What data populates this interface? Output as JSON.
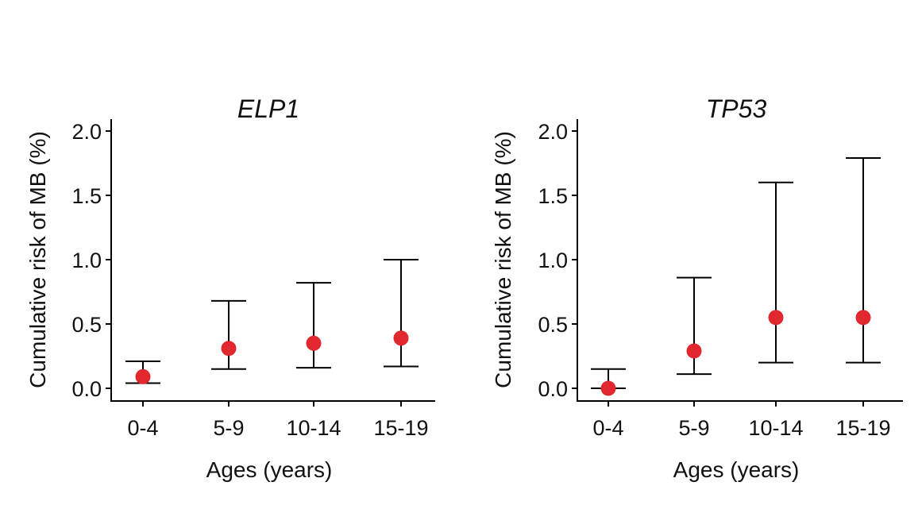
{
  "chart_data": [
    {
      "type": "scatter",
      "title": "ELP1",
      "xlabel": "Ages (years)",
      "ylabel": "Cumulative risk of MB (%)",
      "categories": [
        "0-4",
        "5-9",
        "10-14",
        "15-19"
      ],
      "values": [
        0.09,
        0.31,
        0.35,
        0.39
      ],
      "error_low": [
        0.04,
        0.15,
        0.16,
        0.17
      ],
      "error_high": [
        0.21,
        0.68,
        0.82,
        1.0
      ],
      "ylim": [
        -0.1,
        2.1
      ],
      "yticks": [
        0.0,
        0.5,
        1.0,
        1.5,
        2.0
      ],
      "ytick_labels": [
        "0.0",
        "0.5",
        "1.0",
        "1.5",
        "2.0"
      ],
      "point_color": "#e0282e",
      "grid": false
    },
    {
      "type": "scatter",
      "title": "TP53",
      "xlabel": "Ages (years)",
      "ylabel": "Cumulative risk of MB (%)",
      "categories": [
        "0-4",
        "5-9",
        "10-14",
        "15-19"
      ],
      "values": [
        0.0,
        0.29,
        0.55,
        0.55
      ],
      "error_low": [
        0.0,
        0.11,
        0.2,
        0.2
      ],
      "error_high": [
        0.15,
        0.86,
        1.6,
        1.79
      ],
      "ylim": [
        -0.1,
        2.1
      ],
      "yticks": [
        0.0,
        0.5,
        1.0,
        1.5,
        2.0
      ],
      "ytick_labels": [
        "0.0",
        "0.5",
        "1.0",
        "1.5",
        "2.0"
      ],
      "point_color": "#e0282e",
      "grid": false
    }
  ]
}
